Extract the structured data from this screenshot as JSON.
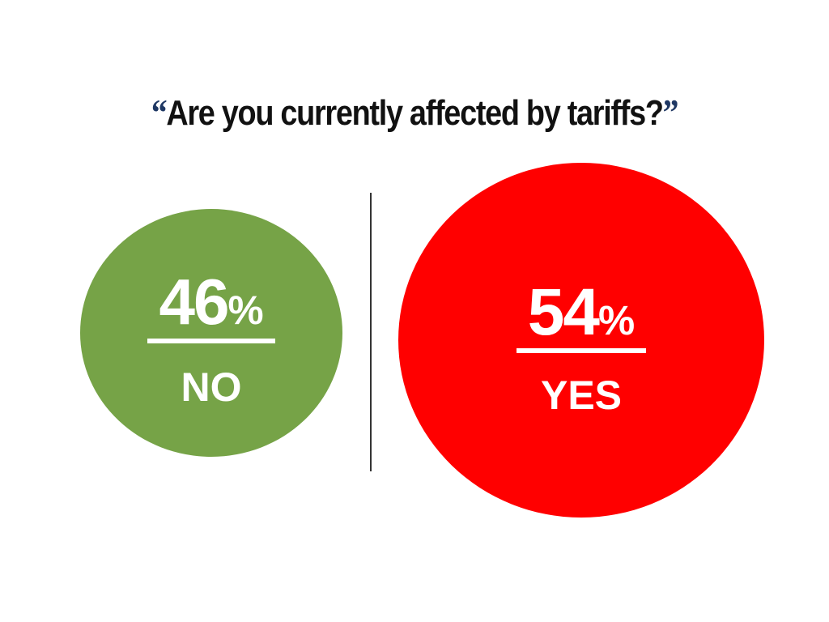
{
  "chart_data": {
    "type": "bubble",
    "title": "Are you currently affected by tariffs?",
    "open_quote": "“",
    "close_quote": "”",
    "unit": "%",
    "items": [
      {
        "key": "no",
        "label": "NO",
        "value": 46,
        "value_text": "46",
        "color": "#76a347"
      },
      {
        "key": "yes",
        "label": "YES",
        "value": 54,
        "value_text": "54",
        "color": "#ff0000"
      }
    ]
  }
}
